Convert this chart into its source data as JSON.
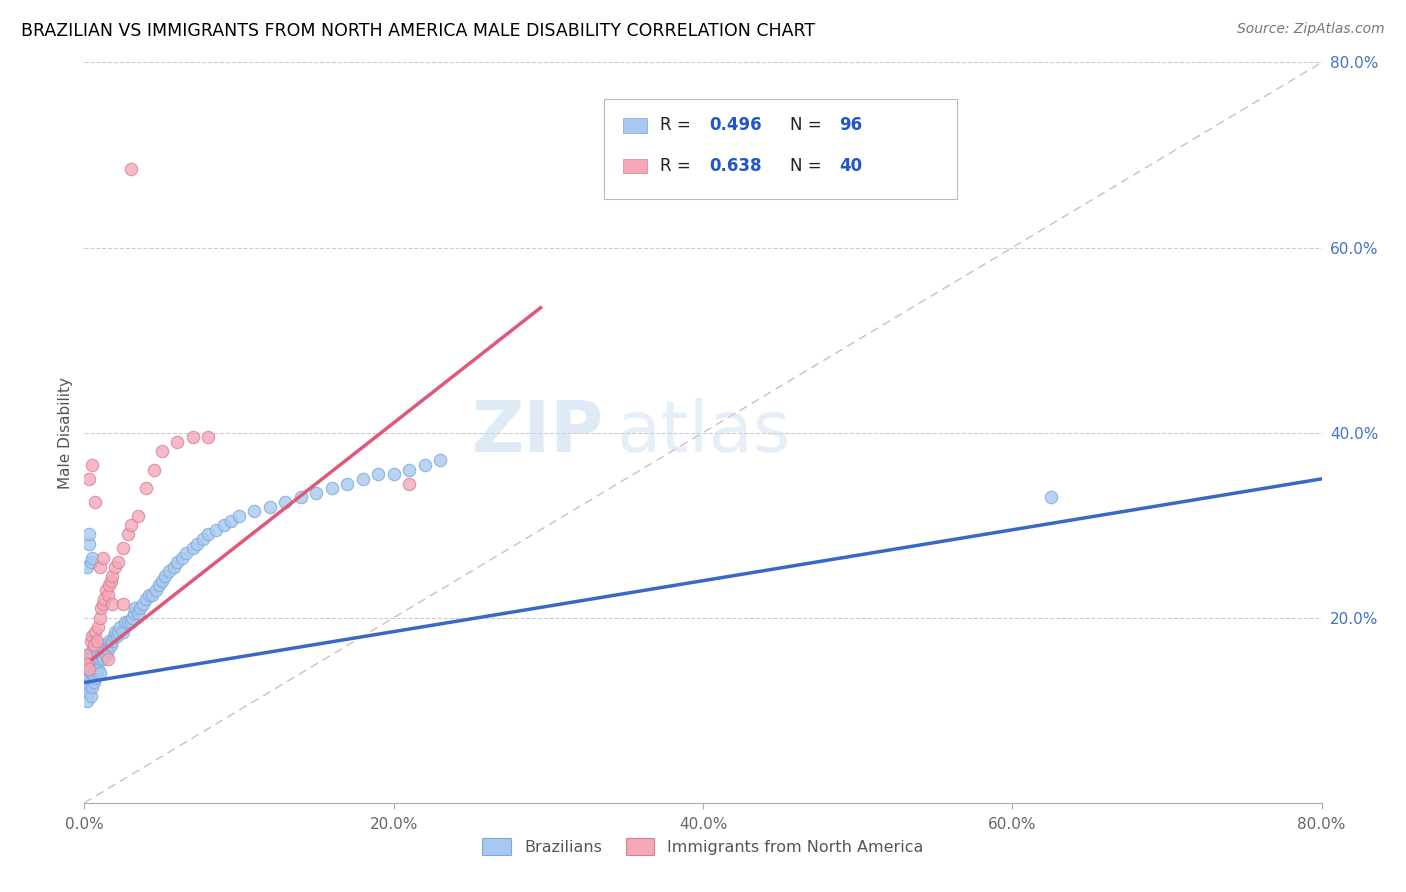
{
  "title": "BRAZILIAN VS IMMIGRANTS FROM NORTH AMERICA MALE DISABILITY CORRELATION CHART",
  "source": "Source: ZipAtlas.com",
  "ylabel": "Male Disability",
  "xlim": [
    0.0,
    0.8
  ],
  "ylim": [
    0.0,
    0.8
  ],
  "xtick_labels": [
    "0.0%",
    "",
    "20.0%",
    "",
    "40.0%",
    "",
    "60.0%",
    "",
    "80.0%"
  ],
  "xtick_vals": [
    0.0,
    0.1,
    0.2,
    0.3,
    0.4,
    0.5,
    0.6,
    0.7,
    0.8
  ],
  "ytick_labels": [
    "20.0%",
    "40.0%",
    "60.0%",
    "80.0%"
  ],
  "ytick_vals": [
    0.2,
    0.4,
    0.6,
    0.8
  ],
  "color_blue": "#A8C8F0",
  "color_pink": "#F4A8B8",
  "color_blue_line": "#3A68C4",
  "color_pink_line": "#E05878",
  "color_diag": "#C8C8C8",
  "watermark_zip": "ZIP",
  "watermark_atlas": "atlas",
  "label1": "Brazilians",
  "label2": "Immigrants from North America",
  "brazil_x": [
    0.001,
    0.001,
    0.001,
    0.002,
    0.002,
    0.002,
    0.002,
    0.003,
    0.003,
    0.003,
    0.003,
    0.004,
    0.004,
    0.004,
    0.005,
    0.005,
    0.005,
    0.005,
    0.006,
    0.006,
    0.006,
    0.007,
    0.007,
    0.007,
    0.008,
    0.008,
    0.008,
    0.009,
    0.009,
    0.01,
    0.01,
    0.01,
    0.011,
    0.012,
    0.012,
    0.013,
    0.014,
    0.015,
    0.015,
    0.016,
    0.017,
    0.018,
    0.019,
    0.02,
    0.021,
    0.022,
    0.023,
    0.025,
    0.026,
    0.028,
    0.03,
    0.031,
    0.032,
    0.033,
    0.035,
    0.036,
    0.038,
    0.04,
    0.042,
    0.044,
    0.046,
    0.048,
    0.05,
    0.052,
    0.055,
    0.058,
    0.06,
    0.063,
    0.066,
    0.07,
    0.073,
    0.077,
    0.08,
    0.085,
    0.09,
    0.095,
    0.1,
    0.11,
    0.12,
    0.13,
    0.14,
    0.15,
    0.16,
    0.17,
    0.18,
    0.19,
    0.2,
    0.21,
    0.22,
    0.23,
    0.002,
    0.003,
    0.004,
    0.005,
    0.003,
    0.625
  ],
  "brazil_y": [
    0.13,
    0.14,
    0.15,
    0.11,
    0.125,
    0.145,
    0.155,
    0.12,
    0.135,
    0.15,
    0.16,
    0.115,
    0.14,
    0.155,
    0.125,
    0.14,
    0.155,
    0.165,
    0.13,
    0.145,
    0.16,
    0.135,
    0.15,
    0.165,
    0.14,
    0.155,
    0.17,
    0.145,
    0.16,
    0.14,
    0.155,
    0.17,
    0.16,
    0.155,
    0.17,
    0.165,
    0.16,
    0.17,
    0.165,
    0.175,
    0.17,
    0.175,
    0.18,
    0.185,
    0.18,
    0.185,
    0.19,
    0.185,
    0.195,
    0.195,
    0.195,
    0.2,
    0.205,
    0.21,
    0.205,
    0.21,
    0.215,
    0.22,
    0.225,
    0.225,
    0.23,
    0.235,
    0.24,
    0.245,
    0.25,
    0.255,
    0.26,
    0.265,
    0.27,
    0.275,
    0.28,
    0.285,
    0.29,
    0.295,
    0.3,
    0.305,
    0.31,
    0.315,
    0.32,
    0.325,
    0.33,
    0.335,
    0.34,
    0.345,
    0.35,
    0.355,
    0.355,
    0.36,
    0.365,
    0.37,
    0.255,
    0.28,
    0.26,
    0.265,
    0.29,
    0.33
  ],
  "immig_x": [
    0.001,
    0.002,
    0.003,
    0.004,
    0.005,
    0.006,
    0.007,
    0.008,
    0.009,
    0.01,
    0.011,
    0.012,
    0.013,
    0.014,
    0.015,
    0.016,
    0.017,
    0.018,
    0.02,
    0.022,
    0.025,
    0.028,
    0.03,
    0.035,
    0.04,
    0.045,
    0.05,
    0.06,
    0.07,
    0.08,
    0.003,
    0.005,
    0.007,
    0.01,
    0.012,
    0.015,
    0.018,
    0.025,
    0.21,
    0.03
  ],
  "immig_y": [
    0.16,
    0.15,
    0.145,
    0.175,
    0.18,
    0.17,
    0.185,
    0.175,
    0.19,
    0.2,
    0.21,
    0.215,
    0.22,
    0.23,
    0.225,
    0.235,
    0.24,
    0.245,
    0.255,
    0.26,
    0.275,
    0.29,
    0.3,
    0.31,
    0.34,
    0.36,
    0.38,
    0.39,
    0.395,
    0.395,
    0.35,
    0.365,
    0.325,
    0.255,
    0.265,
    0.155,
    0.215,
    0.215,
    0.345,
    0.685
  ],
  "blue_trend_x": [
    0.0,
    0.8
  ],
  "blue_trend_y": [
    0.13,
    0.35
  ],
  "pink_trend_x": [
    0.005,
    0.295
  ],
  "pink_trend_y": [
    0.155,
    0.535
  ]
}
